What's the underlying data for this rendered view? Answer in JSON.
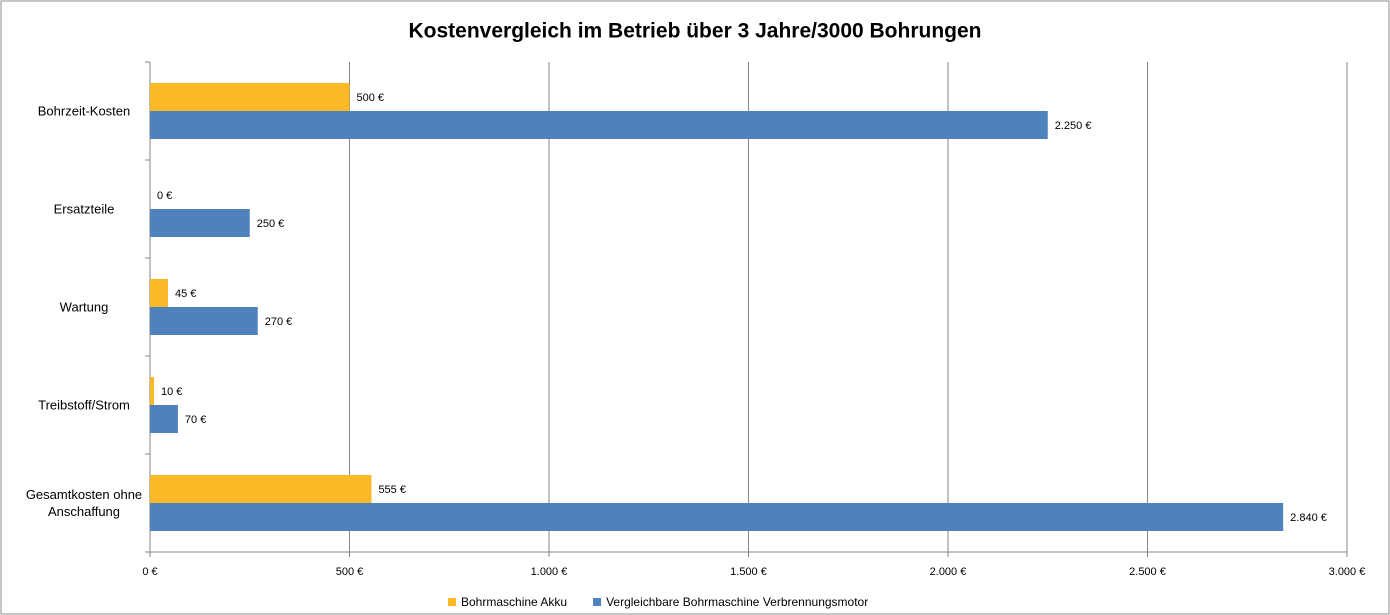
{
  "chart_data": {
    "type": "hbar",
    "title": "Kostenvergleich im Betrieb über 3 Jahre/3000 Bohrungen",
    "categories": [
      "Bohrzeit-Kosten",
      "Ersatzteile",
      "Wartung",
      "Treibstoff/Strom",
      "Gesamtkosten ohne Anschaffung"
    ],
    "series": [
      {
        "name": "Bohrmaschine Akku",
        "color": "#fbb927",
        "values": [
          500,
          0,
          45,
          10,
          555
        ],
        "value_labels": [
          "500 €",
          "0 €",
          "45 €",
          "10 €",
          "555 €"
        ]
      },
      {
        "name": "Vergleichbare Bohrmaschine Verbrennungsmotor",
        "color": "#4f81bd",
        "values": [
          2250,
          250,
          270,
          70,
          2840
        ],
        "value_labels": [
          "2.250 €",
          "250 €",
          "270 €",
          "70 €",
          "2.840 €"
        ]
      }
    ],
    "xlim": [
      0,
      3000
    ],
    "xticks": [
      {
        "value": 0,
        "label": "0 €"
      },
      {
        "value": 500,
        "label": "500 €"
      },
      {
        "value": 1000,
        "label": "1.000 €"
      },
      {
        "value": 1500,
        "label": "1.500 €"
      },
      {
        "value": 2000,
        "label": "2.000 €"
      },
      {
        "value": 2500,
        "label": "2.500 €"
      },
      {
        "value": 3000,
        "label": "3.000 €"
      }
    ],
    "grid": true,
    "legend": "bottom"
  }
}
